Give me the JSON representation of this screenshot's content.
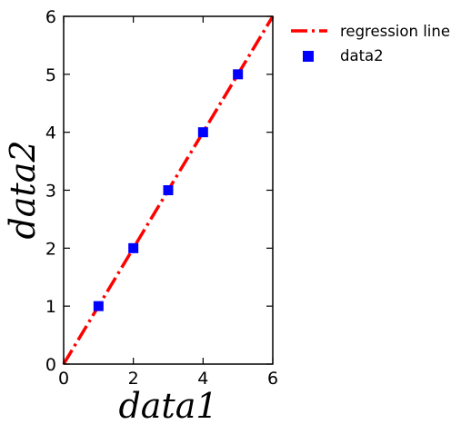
{
  "chart_data": {
    "type": "scatter",
    "title": "",
    "xlabel": "data1",
    "ylabel": "data2",
    "xlim": [
      0,
      6
    ],
    "ylim": [
      0,
      6
    ],
    "xticks": [
      0,
      2,
      4,
      6
    ],
    "yticks": [
      0,
      1,
      2,
      3,
      4,
      5,
      6
    ],
    "xtick_labels": [
      "0",
      "2",
      "4",
      "6"
    ],
    "ytick_labels": [
      "0",
      "1",
      "2",
      "3",
      "4",
      "5",
      "6"
    ],
    "grid": false,
    "legend_position": "outside-top-right",
    "series": [
      {
        "name": "regression line",
        "kind": "line",
        "style": "dash-dot",
        "color": "#ff0000",
        "x": [
          0,
          6
        ],
        "y": [
          0,
          6
        ]
      },
      {
        "name": "data2",
        "kind": "scatter",
        "marker": "square",
        "color": "#0000ff",
        "x": [
          1,
          2,
          3,
          4,
          5
        ],
        "y": [
          1,
          2,
          3,
          4,
          5
        ]
      }
    ]
  }
}
